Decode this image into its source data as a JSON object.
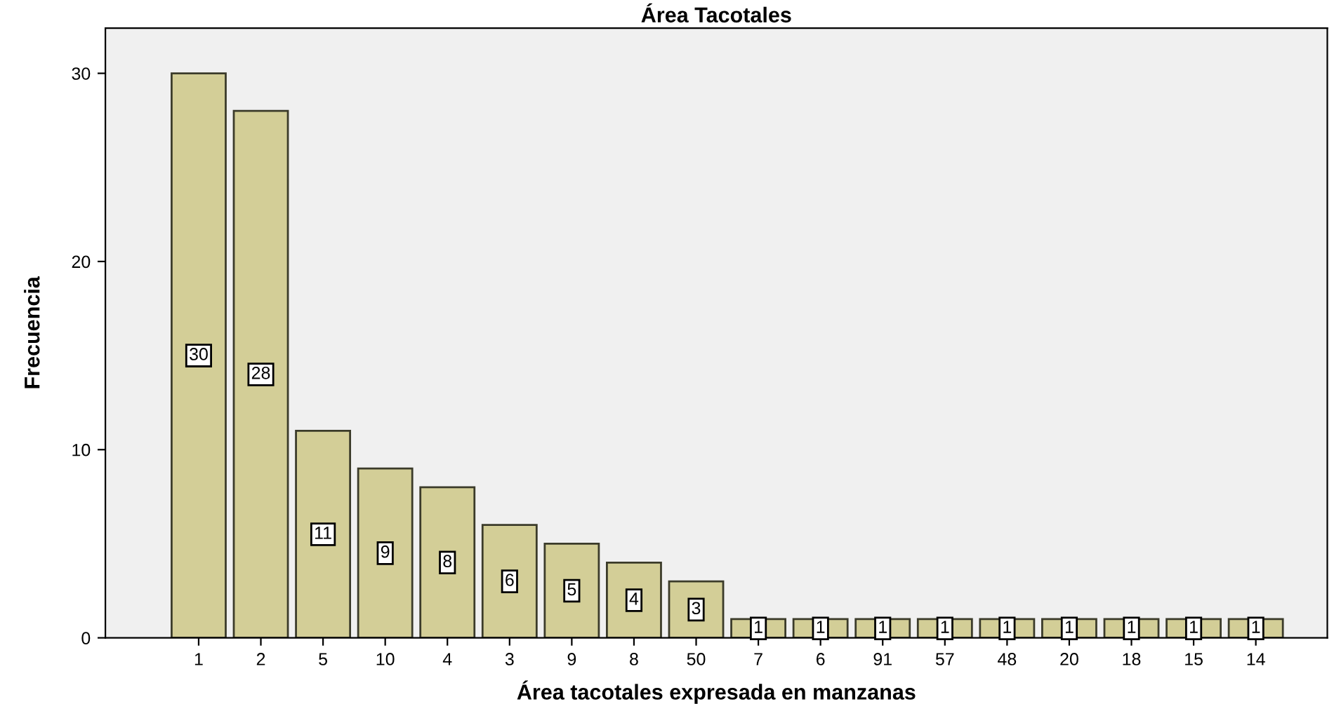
{
  "chart_data": {
    "type": "bar",
    "title": "Área Tacotales",
    "xlabel": "Área tacotales expresada en manzanas",
    "ylabel": "Frecuencia",
    "categories": [
      "1",
      "2",
      "5",
      "10",
      "4",
      "3",
      "9",
      "8",
      "50",
      "7",
      "6",
      "91",
      "57",
      "48",
      "20",
      "18",
      "15",
      "14"
    ],
    "values": [
      30,
      28,
      11,
      9,
      8,
      6,
      5,
      4,
      3,
      1,
      1,
      1,
      1,
      1,
      1,
      1,
      1,
      1
    ],
    "color": "#d3ce97",
    "ylim": [
      0,
      32.4
    ],
    "yticks": [
      0,
      10,
      20,
      30
    ],
    "grid": false,
    "data_labels": true
  }
}
